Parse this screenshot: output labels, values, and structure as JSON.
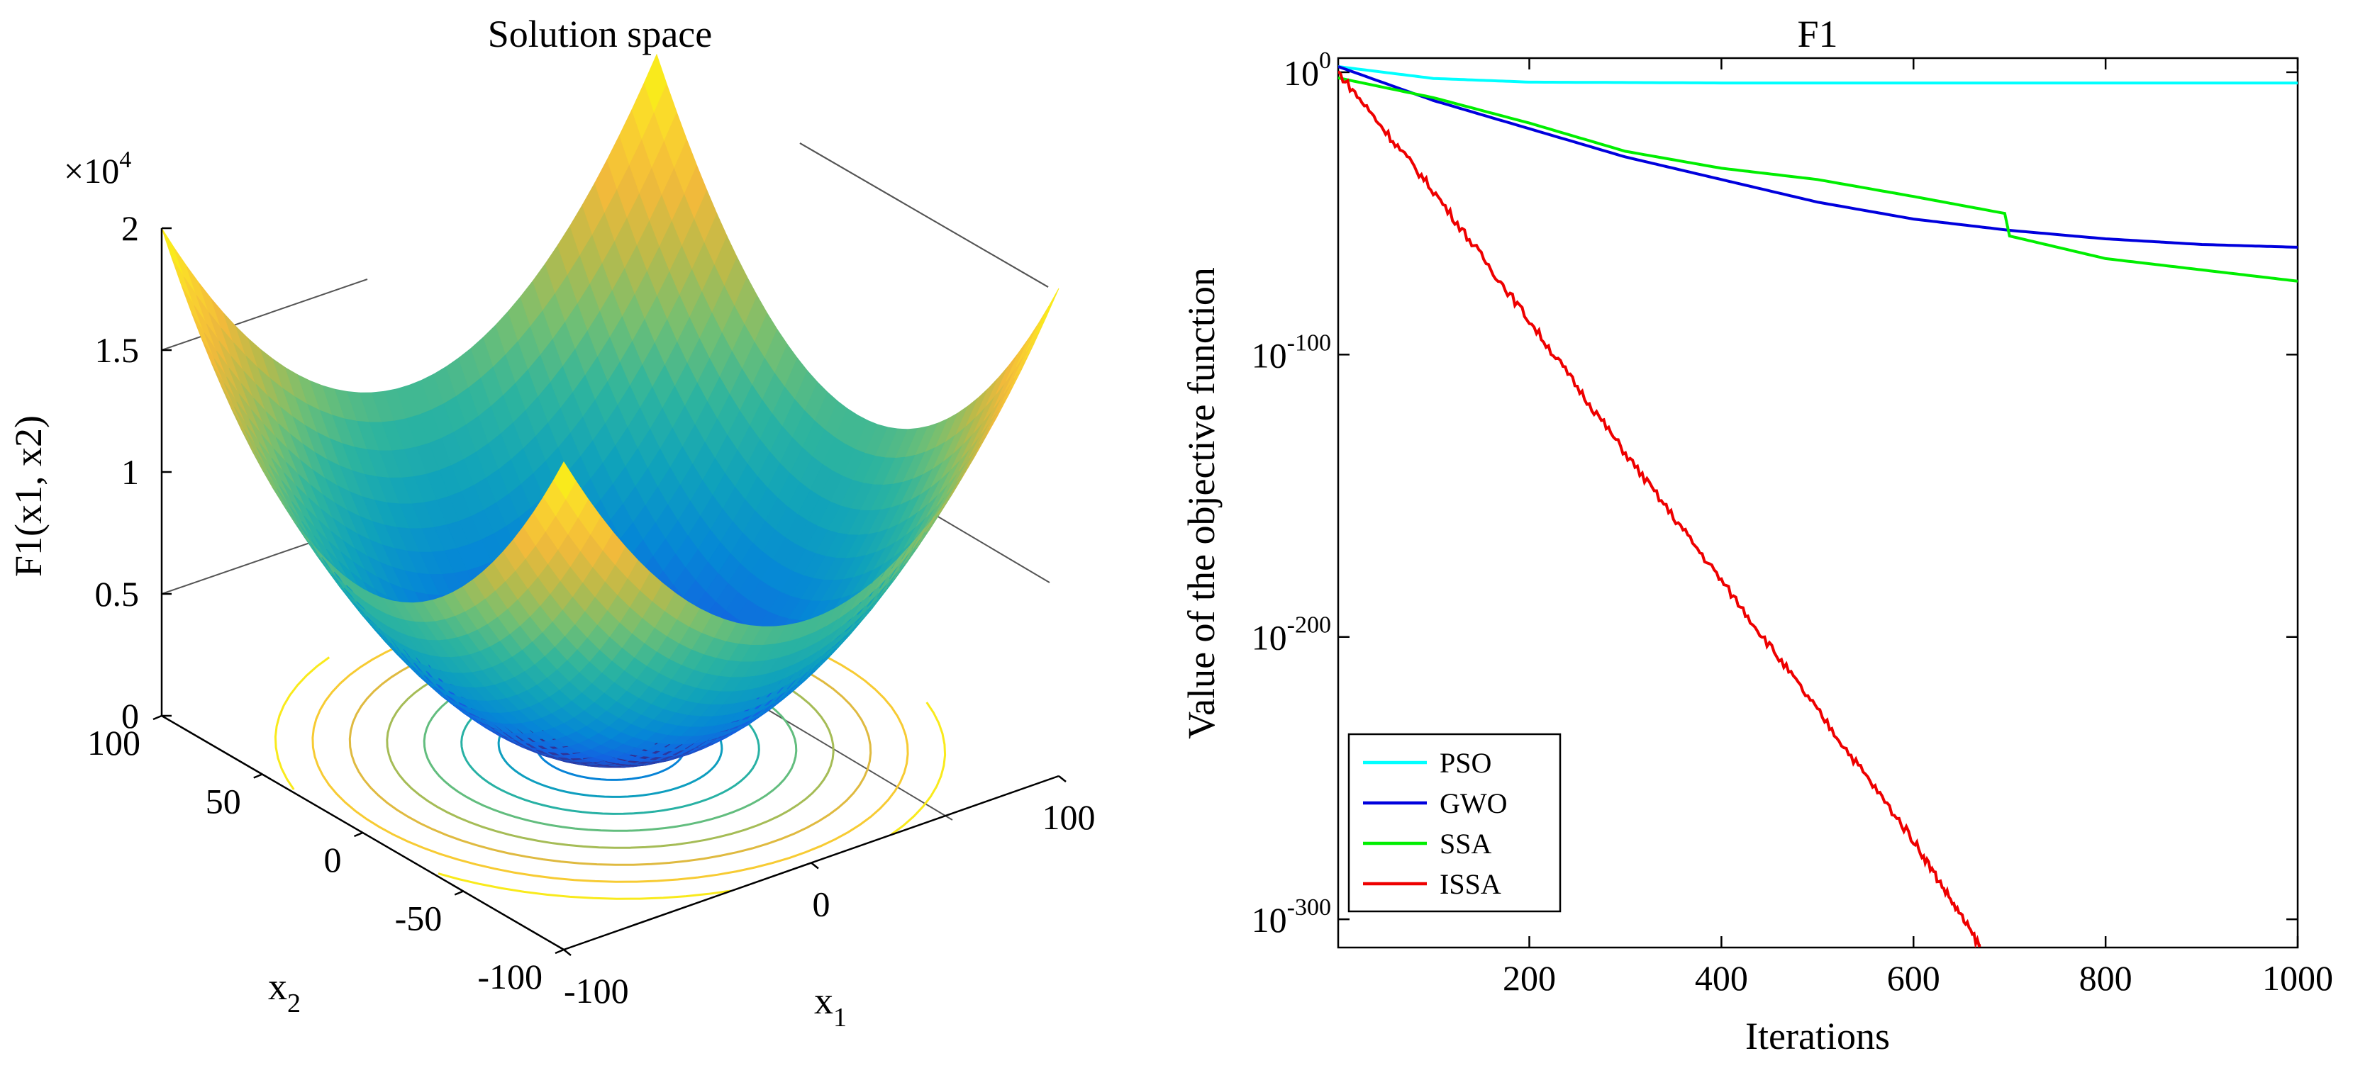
{
  "left_panel": {
    "title": "Solution space",
    "zlabel": "F1(x1, x2)",
    "z_multiplier": "×10",
    "z_multiplier_exp": "4",
    "z_ticks": [
      "0",
      "0.5",
      "1",
      "1.5",
      "2"
    ],
    "x1_label": "x",
    "x1_sub": "1",
    "x2_label": "x",
    "x2_sub": "2",
    "x1_ticks": [
      "-100",
      "0",
      "100"
    ],
    "x2_ticks": [
      "100",
      "50",
      "0",
      "-50",
      "-100"
    ]
  },
  "chart_data": [
    {
      "type": "surface",
      "title": "Solution space",
      "function": "F1(x1, x2) = x1^2 + x2^2",
      "x1_range": [
        -100,
        100
      ],
      "x2_range": [
        -100,
        100
      ],
      "z_range": [
        0,
        20000
      ],
      "colormap": "parula",
      "contour_levels": 9
    },
    {
      "type": "line",
      "title": "F1",
      "xlabel": "Iterations",
      "ylabel": "Value of the objective function",
      "yscale": "log",
      "xlim": [
        1,
        1000
      ],
      "ylim_exp": [
        -310,
        5
      ],
      "x_ticks": [
        200,
        400,
        600,
        800,
        1000
      ],
      "y_ticks": [
        {
          "base": "10",
          "exp": "0",
          "value_exp": 0
        },
        {
          "base": "10",
          "exp": "-100",
          "value_exp": -100
        },
        {
          "base": "10",
          "exp": "-200",
          "value_exp": -200
        },
        {
          "base": "10",
          "exp": "-300",
          "value_exp": -300
        }
      ],
      "legend_position": "bottom-left",
      "series": [
        {
          "name": "PSO",
          "color": "#00ffff",
          "x": [
            1,
            100,
            200,
            400,
            600,
            800,
            1000
          ],
          "log10_y": [
            2,
            -2.2,
            -3.5,
            -3.8,
            -3.8,
            -3.8,
            -3.8
          ]
        },
        {
          "name": "GWO",
          "color": "#0000dd",
          "x": [
            1,
            100,
            200,
            300,
            400,
            500,
            600,
            700,
            800,
            900,
            1000
          ],
          "log10_y": [
            2,
            -10,
            -20,
            -30,
            -38,
            -46,
            -52,
            -56,
            -59,
            -61,
            -62
          ]
        },
        {
          "name": "SSA",
          "color": "#00ee00",
          "x": [
            1,
            100,
            200,
            300,
            400,
            500,
            600,
            695,
            700,
            800,
            900,
            1000
          ],
          "log10_y": [
            -2,
            -9,
            -18,
            -28,
            -34,
            -38,
            -44,
            -50,
            -58,
            -66,
            -70,
            -74
          ]
        },
        {
          "name": "ISSA",
          "color": "#ee0000",
          "x": [
            1,
            100,
            200,
            300,
            400,
            500,
            600,
            670
          ],
          "log10_y": [
            0,
            -42,
            -88,
            -135,
            -180,
            -226,
            -272,
            -310
          ]
        }
      ]
    }
  ]
}
